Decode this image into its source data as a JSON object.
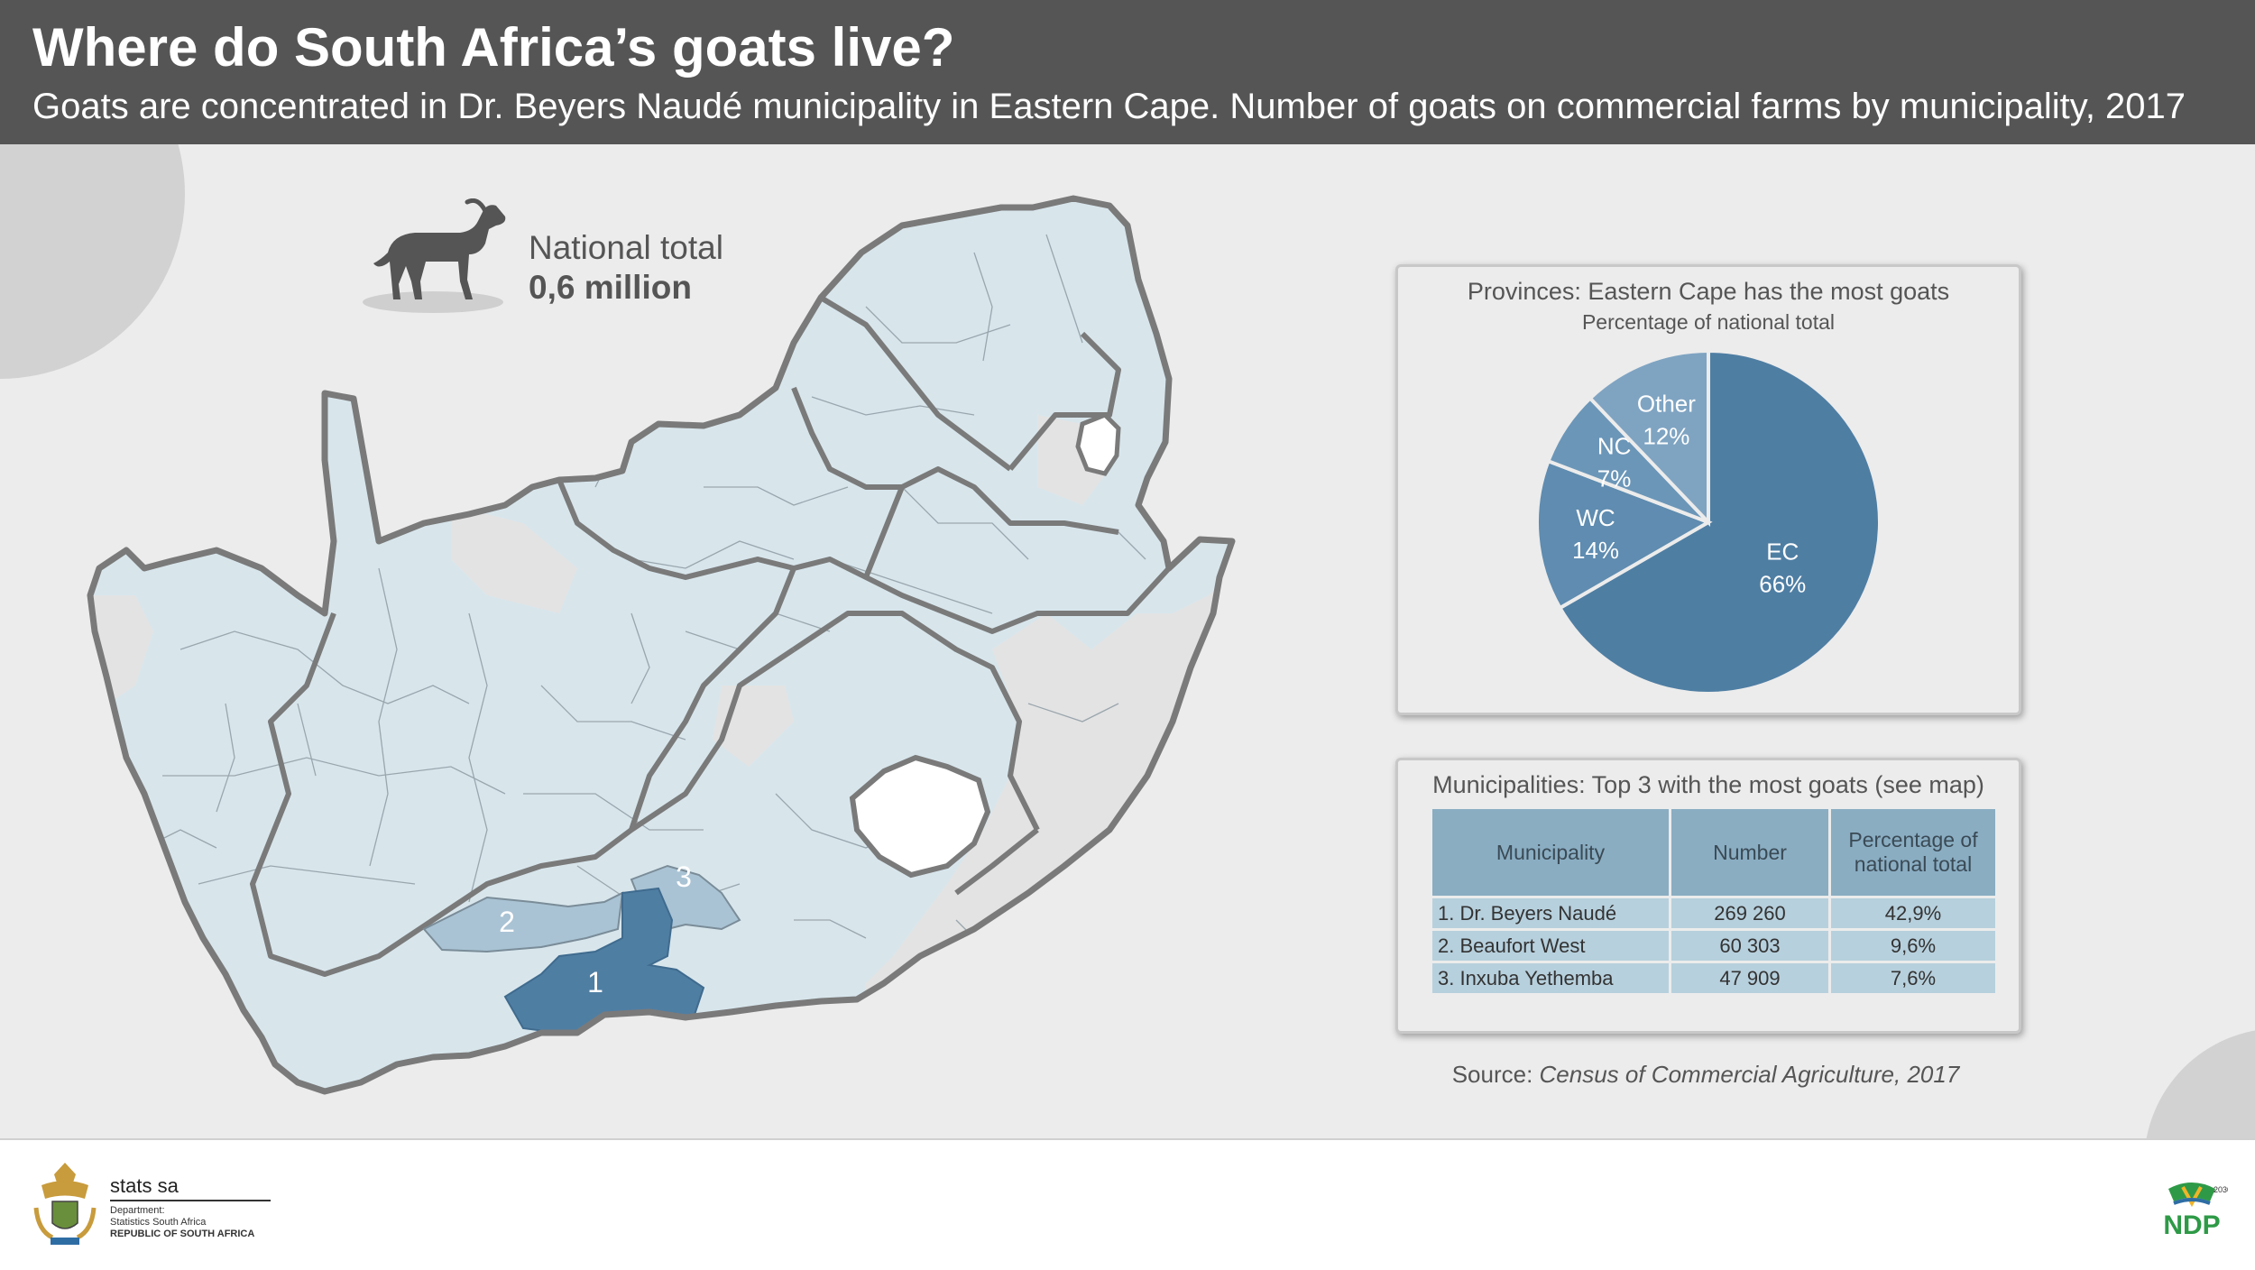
{
  "header": {
    "title": "Where do South Africa’s goats live?",
    "subtitle": "Goats are concentrated in Dr. Beyers Naudé municipality in Eastern Cape. Number of goats on commercial farms by municipality, 2017"
  },
  "national": {
    "label": "National total",
    "value": "0,6 million",
    "icon": "goat-icon"
  },
  "map": {
    "highlight_labels": [
      "1",
      "2",
      "3"
    ],
    "colors": {
      "high": "#4f7ea3",
      "mid": "#a9c3d4",
      "low": "#d8e6ec",
      "other": "#e3e3e3",
      "border": "#7a7a7a"
    }
  },
  "pie_panel": {
    "title": "Provinces: Eastern Cape has the most goats",
    "subtitle": "Percentage of national total"
  },
  "chart_data": {
    "type": "pie",
    "title": "Provinces: Eastern Cape has the most goats",
    "subtitle": "Percentage of national total",
    "slices": [
      {
        "label": "EC",
        "value": 66,
        "value_label": "66%",
        "color": "#4f7ea3"
      },
      {
        "label": "WC",
        "value": 14,
        "value_label": "14%",
        "color": "#5f8cb0"
      },
      {
        "label": "NC",
        "value": 7,
        "value_label": "7%",
        "color": "#6b96b8"
      },
      {
        "label": "Other",
        "value": 12,
        "value_label": "12%",
        "color": "#7fa4c2"
      }
    ]
  },
  "table_panel": {
    "title": "Municipalities: Top 3 with the most goats (see map)",
    "headers": [
      "Municipality",
      "Number",
      "Percentage of national total"
    ],
    "rows": [
      {
        "name": "1. Dr. Beyers Naudé",
        "number": "269 260",
        "pct": "42,9%"
      },
      {
        "name": "2. Beaufort West",
        "number": "60 303",
        "pct": "9,6%"
      },
      {
        "name": "3. Inxuba Yethemba",
        "number": "47 909",
        "pct": "7,6%"
      }
    ]
  },
  "source": {
    "prefix": "Source: ",
    "title": "Census of Commercial Agriculture, 2017"
  },
  "footer": {
    "org": "stats sa",
    "dept_line1": "Department:",
    "dept_line2": "Statistics South Africa",
    "country": "REPUBLIC OF SOUTH AFRICA",
    "ndp_text": "NDP",
    "ndp_year": "2030"
  }
}
